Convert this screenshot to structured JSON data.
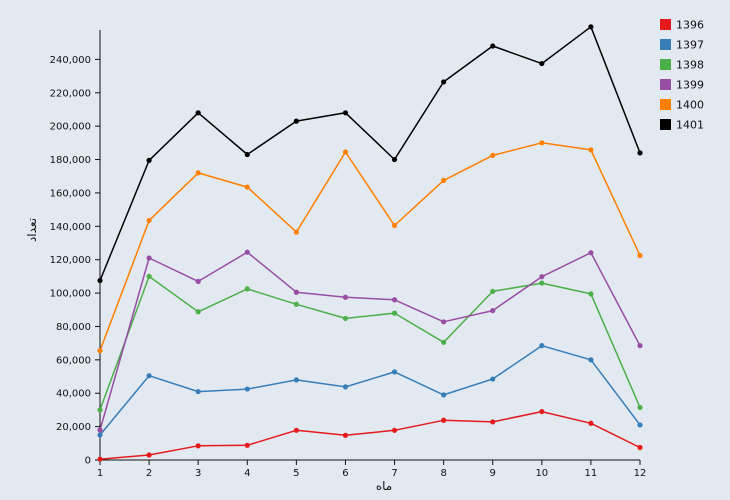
{
  "chart_data": {
    "type": "line",
    "xlabel": "ماه",
    "ylabel": "تعداد",
    "categories": [
      1,
      2,
      3,
      4,
      5,
      6,
      7,
      8,
      9,
      10,
      11,
      12
    ],
    "ylim": [
      0,
      260000
    ],
    "yticks": [
      0,
      20000,
      40000,
      60000,
      80000,
      100000,
      120000,
      140000,
      160000,
      180000,
      200000,
      220000,
      240000
    ],
    "ytick_labels": [
      "0",
      "20,000",
      "40,000",
      "60,000",
      "80,000",
      "100,000",
      "120,000",
      "140,000",
      "160,000",
      "180,000",
      "200,000",
      "220,000",
      "240,000"
    ],
    "grid": false,
    "legend_position": "top-right",
    "series": [
      {
        "name": "1396",
        "color": "#e41a1c",
        "values": [
          500,
          3000,
          8500,
          8800,
          17800,
          14800,
          17800,
          23800,
          22800,
          29000,
          22000,
          7500
        ]
      },
      {
        "name": "1397",
        "color": "#377eb8",
        "values": [
          15000,
          50500,
          41000,
          42500,
          48000,
          43800,
          52800,
          39000,
          48500,
          68500,
          60000,
          21000
        ]
      },
      {
        "name": "1398",
        "color": "#4daf4a",
        "values": [
          30000,
          110000,
          88800,
          102500,
          93300,
          84800,
          88000,
          70500,
          101000,
          106000,
          99500,
          31500
        ]
      },
      {
        "name": "1399",
        "color": "#984ea3",
        "values": [
          18000,
          121000,
          107000,
          124500,
          100500,
          97500,
          96000,
          82800,
          89500,
          109800,
          124200,
          68500
        ]
      },
      {
        "name": "1400",
        "color": "#ff7f00",
        "values": [
          65500,
          143500,
          172000,
          163500,
          136500,
          184500,
          140500,
          167500,
          182500,
          190000,
          185800,
          122500
        ]
      },
      {
        "name": "1401",
        "color": "#000000",
        "values": [
          107500,
          179500,
          208000,
          183000,
          203000,
          208000,
          180000,
          226500,
          248000,
          237500,
          259500,
          184000
        ]
      }
    ]
  }
}
